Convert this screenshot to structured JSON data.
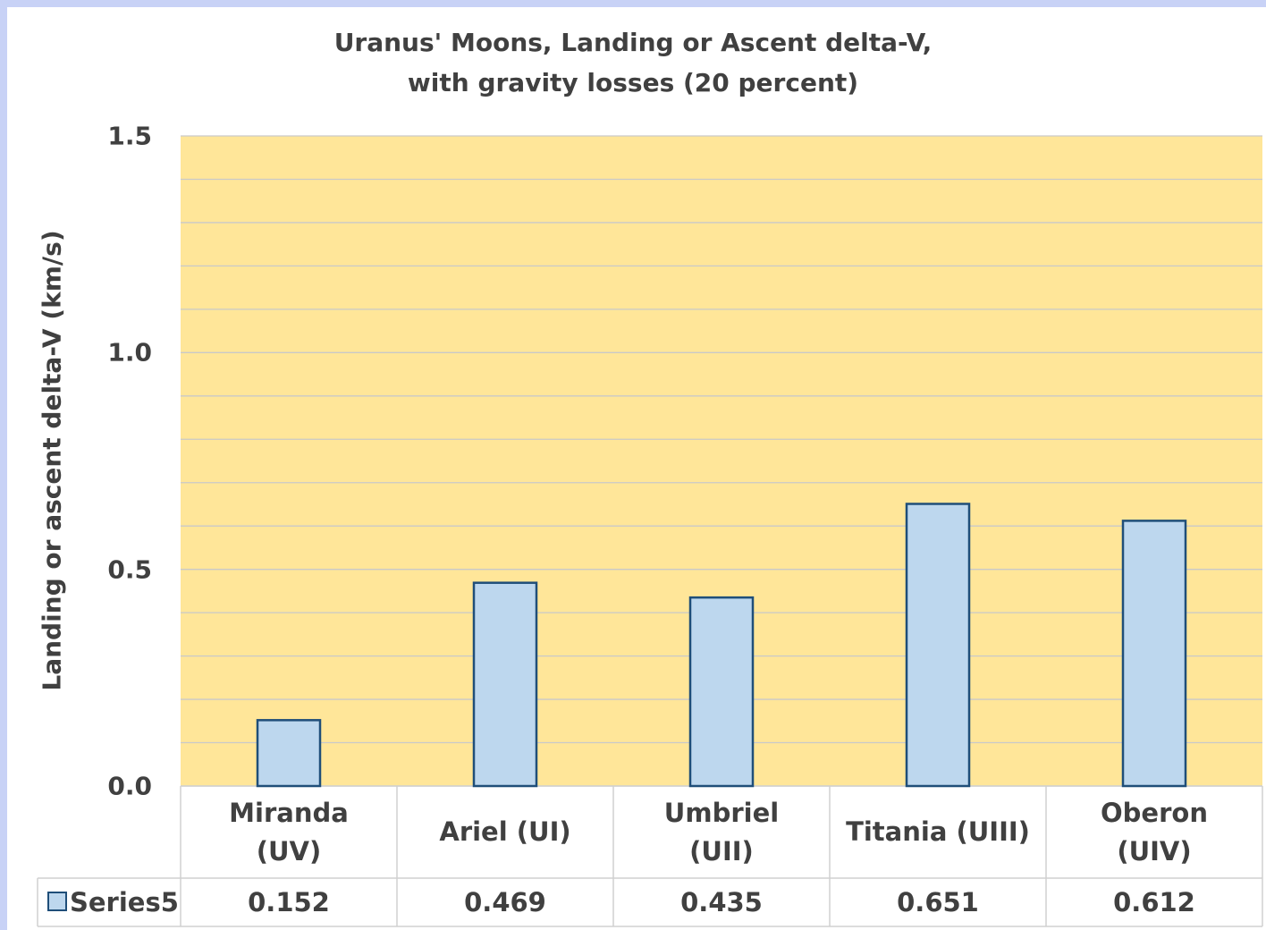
{
  "chart_data": {
    "type": "bar",
    "title": "Uranus' Moons, Landing or Ascent delta-V,\nwith gravity losses (20 percent)",
    "y_label": "Landing or ascent delta-V (km/s)",
    "categories": [
      "Miranda\n(UV)",
      "Ariel (UI)",
      "Umbriel\n(UII)",
      "Titania (UIII)",
      "Oberon\n(UIV)"
    ],
    "series": [
      {
        "name": "Series5",
        "color": "#bdd7ee",
        "values": [
          0.152,
          0.469,
          0.435,
          0.651,
          0.612
        ]
      }
    ],
    "ylim": [
      0,
      1.5
    ],
    "yticks": [
      {
        "value": 0,
        "label": "0.0"
      },
      0.5,
      {
        "value": 1,
        "label": "1.0"
      },
      1.5
    ],
    "minor_yticks": [
      0.1,
      0.2,
      0.3,
      0.4,
      0.6,
      0.7,
      0.8,
      0.9,
      1.1,
      1.2,
      1.3,
      1.4
    ],
    "grid": true,
    "plot_background": "#ffe699",
    "data_table": true
  }
}
